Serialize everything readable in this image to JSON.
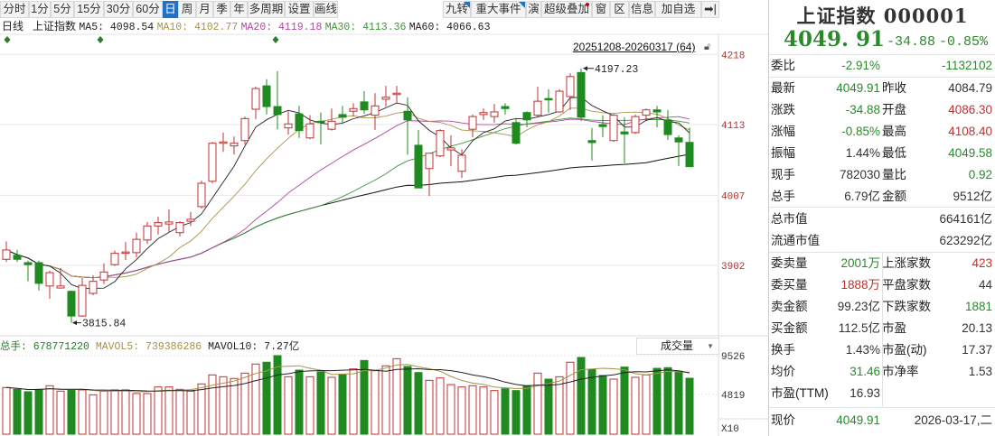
{
  "toolbar": {
    "periods": [
      "分时",
      "1分",
      "5分",
      "15分",
      "30分",
      "60分",
      "日",
      "周",
      "月",
      "季",
      "年",
      "多周期",
      "设置",
      "画线"
    ],
    "selected": "日",
    "tools": [
      "九转",
      "重大事件",
      "演",
      "超级叠加",
      "窗",
      "区",
      "信息",
      "加自选",
      "➡|"
    ]
  },
  "legend": {
    "period": "日线",
    "name": "上证指数",
    "ma5": "MA5: 4098.54",
    "ma10": "MA10: 4102.77",
    "ma20": "MA20: 4119.18",
    "ma30": "MA30: 4113.36",
    "ma60": "MA60: 4066.63"
  },
  "range_label": "20251208-20260317 (64)",
  "colors": {
    "up": "#c03030",
    "down": "#1f8a1f",
    "ma5": "#222222",
    "ma10": "#a8924a",
    "ma20": "#b0489e",
    "ma30": "#3a963a",
    "ma60": "#111111",
    "accent": "#1e73c8"
  },
  "chart_data": {
    "type": "candlestick",
    "price_ticks": [
      4218,
      4113,
      4007,
      3902
    ],
    "annotations": {
      "high": "4197.23",
      "low": "3815.84"
    },
    "candles": [
      [
        3911,
        3925,
        3938,
        3907
      ],
      [
        3917,
        3911,
        3925,
        3907
      ],
      [
        3906,
        3903,
        3909,
        3878
      ],
      [
        3906,
        3875,
        3909,
        3864
      ],
      [
        3871,
        3891,
        3894,
        3852
      ],
      [
        3868,
        3871,
        3898,
        3867
      ],
      [
        3863,
        3826,
        3864,
        3815.84
      ],
      [
        3826,
        3872,
        3883,
        3825
      ],
      [
        3860,
        3878,
        3887,
        3857
      ],
      [
        3880,
        3892,
        3905,
        3874
      ],
      [
        3903,
        3920,
        3924,
        3901
      ],
      [
        3920,
        3922,
        3937,
        3910
      ],
      [
        3921,
        3941,
        3951,
        3914
      ],
      [
        3940,
        3961,
        3967,
        3934
      ],
      [
        3961,
        3966,
        3975,
        3948
      ],
      [
        3964,
        3967,
        3986,
        3951
      ],
      [
        3951,
        3966,
        3968,
        3945
      ],
      [
        3968,
        3971,
        3982,
        3961
      ],
      [
        3990,
        4025,
        4029,
        3987
      ],
      [
        4028,
        4085,
        4087,
        4025
      ],
      [
        4085,
        4087,
        4101,
        4072
      ],
      [
        4081,
        4085,
        4095,
        4068
      ],
      [
        4089,
        4122,
        4125,
        4083
      ],
      [
        4136,
        4167,
        4170,
        4121
      ],
      [
        4171,
        4140,
        4181,
        4128
      ],
      [
        4140,
        4128,
        4193,
        4106
      ],
      [
        4108,
        4114,
        4133,
        4098
      ],
      [
        4129,
        4104,
        4141,
        4093
      ],
      [
        4093,
        4114,
        4127,
        4091
      ],
      [
        4118,
        4116,
        4131,
        4083
      ],
      [
        4106,
        4118,
        4137,
        4104
      ],
      [
        4128,
        4124,
        4141,
        4114
      ],
      [
        4133,
        4137,
        4145,
        4125
      ],
      [
        4147,
        4135,
        4163,
        4129
      ],
      [
        4127,
        4141,
        4160,
        4105
      ],
      [
        4151,
        4154,
        4171,
        4140
      ],
      [
        4158,
        4160,
        4171,
        4144
      ],
      [
        4133,
        4120,
        4154,
        4068
      ],
      [
        4082,
        4018,
        4105,
        4018
      ],
      [
        4047,
        4070,
        4070,
        4006
      ],
      [
        4066,
        4104,
        4106,
        4064
      ],
      [
        4075,
        4078,
        4097,
        4051
      ],
      [
        4043,
        4067,
        4076,
        4033
      ],
      [
        4106,
        4125,
        4128,
        4094
      ],
      [
        4128,
        4131,
        4137,
        4120
      ],
      [
        4125,
        4132,
        4144,
        4116
      ],
      [
        4140,
        4137,
        4145,
        4128
      ],
      [
        4116,
        4085,
        4122,
        4083
      ],
      [
        4131,
        4120,
        4133,
        4109
      ],
      [
        4127,
        4148,
        4170,
        4125
      ],
      [
        4152,
        4150,
        4166,
        4131
      ],
      [
        4132,
        4163,
        4166,
        4131
      ],
      [
        4155,
        4185,
        4190,
        4135
      ],
      [
        4191,
        4124,
        4197.23,
        4118
      ],
      [
        4089,
        4086,
        4108,
        4059
      ],
      [
        4113,
        4110,
        4127,
        4094
      ],
      [
        4089,
        4127,
        4129,
        4087
      ],
      [
        4102,
        4099,
        4124,
        4055
      ],
      [
        4101,
        4125,
        4128,
        4099
      ],
      [
        4127,
        4135,
        4137,
        4120
      ],
      [
        4135,
        4132,
        4141,
        4109
      ],
      [
        4120,
        4098,
        4135,
        4090
      ],
      [
        4093,
        4087,
        4097,
        4051
      ],
      [
        4086.3,
        4049.91,
        4108.4,
        4049.58
      ]
    ],
    "volume": {
      "ticks": [
        "9526",
        "4819"
      ],
      "unit_label": "X10",
      "values": [
        566000000,
        544000000,
        515000000,
        544000000,
        588000000,
        522000000,
        537000000,
        537000000,
        478000000,
        522000000,
        537000000,
        537000000,
        493000000,
        493000000,
        573000000,
        573000000,
        544000000,
        522000000,
        610000000,
        719000000,
        697000000,
        676000000,
        741000000,
        851000000,
        873000000,
        953000000,
        697000000,
        777000000,
        697000000,
        756000000,
        690000000,
        726000000,
        792000000,
        894000000,
        770000000,
        829000000,
        916000000,
        821000000,
        748000000,
        653000000,
        682000000,
        602000000,
        573000000,
        588000000,
        573000000,
        529000000,
        551000000,
        529000000,
        588000000,
        741000000,
        668000000,
        697000000,
        873000000,
        931000000,
        785000000,
        712000000,
        668000000,
        814000000,
        690000000,
        719000000,
        799000000,
        807000000,
        763000000,
        678771220
      ]
    }
  },
  "volume_header": {
    "total": "总手: 678771220",
    "mavol5": "MAVOL5: 739386286",
    "mavol10": "MAVOL10: 7.27亿",
    "selector": "成交量"
  },
  "panel": {
    "title": "上证指数 000001",
    "price": "4049. 91",
    "change": "-34.88",
    "pct": "-0.85%",
    "weibi": {
      "label": "委比",
      "pct": "-2.91%",
      "diff": "-1132102"
    },
    "quote": [
      [
        "最新",
        "4049.91",
        "g",
        "昨收",
        "4084.79",
        "k"
      ],
      [
        "涨跌",
        "-34.88",
        "g",
        "开盘",
        "4086.30",
        "r"
      ],
      [
        "涨幅",
        "-0.85%",
        "g",
        "最高",
        "4108.40",
        "r"
      ],
      [
        "振幅",
        "1.44%",
        "k",
        "最低",
        "4049.58",
        "g"
      ],
      [
        "现手",
        "782030",
        "k",
        "量比",
        "0.92",
        "g"
      ],
      [
        "总手",
        "6.79亿",
        "k",
        "金额",
        "9512亿",
        "k"
      ]
    ],
    "cap": [
      [
        "总市值",
        "664161亿"
      ],
      [
        "流通市值",
        "623292亿"
      ]
    ],
    "book": [
      [
        "委卖量",
        "2001万",
        "g",
        "上涨家数",
        "423",
        "r"
      ],
      [
        "委买量",
        "1888万",
        "r",
        "平盘家数",
        "44",
        "k"
      ],
      [
        "卖金额",
        "99.23亿",
        "k",
        "下跌家数",
        "1881",
        "g"
      ],
      [
        "买金额",
        "112.5亿",
        "k",
        "市盈",
        "20.13",
        "k"
      ],
      [
        "换手",
        "1.43%",
        "k",
        "市盈(动)",
        "17.37",
        "k"
      ],
      [
        "均价",
        "31.46",
        "g",
        "市净率",
        "1.53",
        "k"
      ],
      [
        "市盈(TTM)",
        "16.93",
        "k",
        "",
        "",
        " k"
      ]
    ],
    "now": {
      "label": "现价",
      "price": "4049.91",
      "date": "2026-03-17,二"
    }
  }
}
